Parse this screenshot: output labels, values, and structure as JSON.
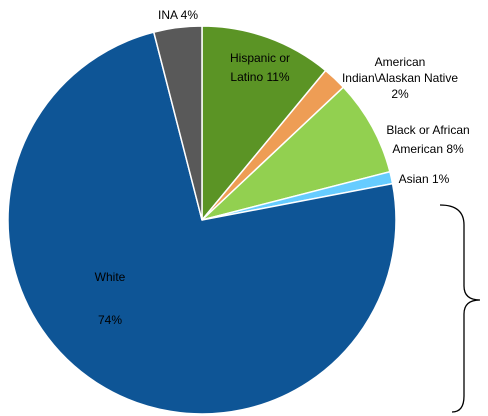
{
  "chart_data": {
    "type": "pie",
    "slices": [
      {
        "label": "Hispanic or Latino",
        "value": 11,
        "color": "#5b9425",
        "label_lines": [
          "Hispanic or",
          "Latino 11%"
        ],
        "label_color": "#ffffff"
      },
      {
        "label": "American Indian\\Alaskan Native",
        "value": 2,
        "color": "#ee9d55",
        "label_lines": [
          "American",
          "Indian\\Alaskan Native",
          "2%"
        ],
        "label_color": "#000000"
      },
      {
        "label": "Black or African American",
        "value": 8,
        "color": "#92d050",
        "label_lines": [
          "Black or African",
          "American 8%"
        ],
        "label_color": "#000000"
      },
      {
        "label": "Asian",
        "value": 1,
        "color": "#66ccff",
        "label_lines": [
          "Asian 1%"
        ],
        "label_color": "#000000"
      },
      {
        "label": "White",
        "value": 74,
        "color": "#0e5596",
        "label_lines": [
          "White",
          "74%"
        ],
        "label_color": "#ffffff"
      },
      {
        "label": "INA",
        "value": 4,
        "color": "#595959",
        "label_lines": [
          "INA 4%"
        ],
        "label_color": "#000000"
      }
    ],
    "start_angle": 0,
    "direction": "clockwise",
    "slice_border_color": "#ffffff",
    "bracket": {
      "color": "#000000",
      "spans": [
        "Asian"
      ]
    }
  }
}
